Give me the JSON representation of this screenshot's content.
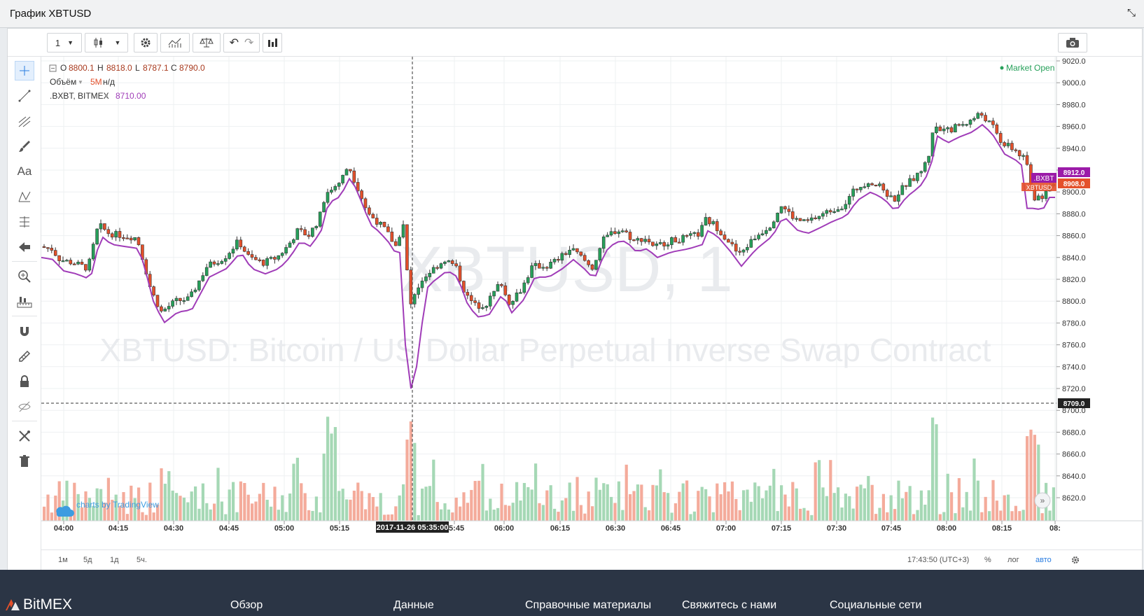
{
  "panel": {
    "title": "График XBTUSD",
    "close_glyph": "⤡"
  },
  "toolbar": {
    "interval": "1",
    "buttons": [
      "interval-dropdown",
      "candles-button",
      "chart-type-dropdown",
      "settings-button",
      "indicators-button",
      "compare-button",
      "undo-button",
      "redo-button",
      "bar-chart-button",
      "snapshot-button"
    ]
  },
  "legend": {
    "ohlc": {
      "o_label": "O",
      "o": "8800.1",
      "h_label": "H",
      "h": "8818.0",
      "l_label": "L",
      "l": "8787.1",
      "c_label": "C",
      "c": "8790.0"
    },
    "volume": {
      "label": "Объём",
      "value": "5M",
      "extra": "н/д"
    },
    "compare": {
      "label": ".BXBT, BITMEX",
      "value": "8710.00"
    },
    "market_status": "Market Open"
  },
  "watermark": {
    "symbol": "XBTUSD, 1",
    "description": "XBTUSD: Bitcoin / US Dollar Perpetual Inverse Swap Contract"
  },
  "price_axis": {
    "ticks": [
      "9020.0",
      "9000.0",
      "8980.0",
      "8960.0",
      "8940.0",
      "8920.0",
      "8900.0",
      "8880.0",
      "8860.0",
      "8840.0",
      "8820.0",
      "8800.0",
      "8780.0",
      "8760.0",
      "8740.0",
      "8720.0",
      "8700.0",
      "8680.0",
      "8660.0",
      "8640.0",
      "8620.0"
    ],
    "labels": {
      "bxbt": "8912.0",
      "bxbt_tag": ".BXBT",
      "xbt": "8908.0",
      "xbt_tag": "XBTUSD",
      "crosshair": "8709.0"
    }
  },
  "time_axis": {
    "ticks": [
      "04:00",
      "04:15",
      "04:30",
      "04:45",
      "05:00",
      "05:15",
      "05:45",
      "06:00",
      "06:15",
      "06:30",
      "06:45",
      "07:00",
      "07:15",
      "07:30",
      "07:45",
      "08:00",
      "08:15",
      "08:"
    ],
    "crosshair_label": "2017-11-26 05:35:00"
  },
  "attribution": "charts by TradingView",
  "bottom_bar": {
    "ranges": [
      "1м",
      "5д",
      "1д",
      "5ч."
    ],
    "clock": "17:43:50 (UTC+3)",
    "percent": "%",
    "log": "лог",
    "auto": "авто"
  },
  "colors": {
    "up": "#26a05a",
    "down": "#e4502b",
    "compare": "#a03cb8",
    "vol_up": "#a5d8b5",
    "vol_down": "#f4ab9b",
    "bxbt_tag": "#9b1ba8",
    "xbt_tag": "#e4502b",
    "footer": "#2b3545"
  },
  "footer": {
    "brand": "BitMEX",
    "links": [
      "Обзор",
      "Данные",
      "Справочные материалы",
      "Свяжитесь с нами",
      "Социальные сети"
    ]
  },
  "icons": [
    "crosshair-icon",
    "trend-line-icon",
    "pitchfork-icon",
    "brush-icon",
    "text-icon",
    "pattern-icon",
    "fib-icon",
    "arrow-icon",
    "zoom-icon",
    "measure-icon",
    "magnet-icon",
    "stay-drawing-icon",
    "lock-icon",
    "hide-icon",
    "remove-tools-icon",
    "trash-icon"
  ]
}
